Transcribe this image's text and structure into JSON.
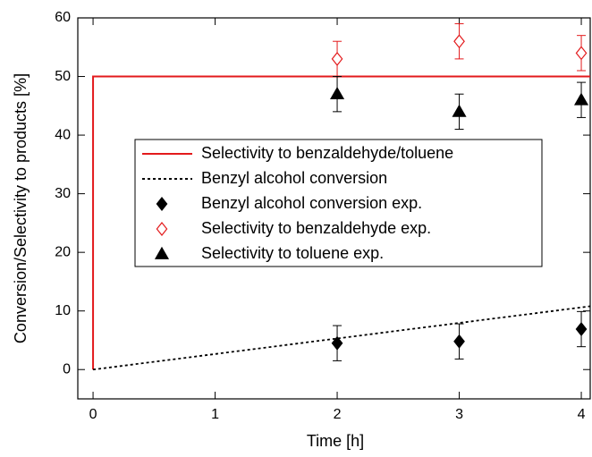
{
  "chart_data": {
    "type": "line",
    "xlabel": "Time [h]",
    "ylabel": "Conversion/Selectivity to products [%]",
    "xlim": [
      -0.125,
      4.073
    ],
    "ylim": [
      -5,
      60
    ],
    "xticks": [
      0,
      1,
      2,
      3,
      4
    ],
    "yticks": [
      0,
      10,
      20,
      30,
      40,
      50,
      60
    ],
    "legend": "upper left",
    "series": [
      {
        "name": "Selectivity to benzaldehyde/toluene",
        "color": "#e31a1c",
        "style": "solid",
        "x": [
          0,
          0,
          4.073
        ],
        "values": [
          0,
          50,
          50
        ]
      },
      {
        "name": "Benzyl alcohol conversion",
        "color": "#000000",
        "style": "dotted",
        "x": [
          0,
          4.073
        ],
        "values": [
          0,
          10.8
        ]
      },
      {
        "name": "Benzyl alcohol conversion exp.",
        "color": "#000000",
        "style": "marker",
        "marker": "diamond",
        "filled": true,
        "x": [
          2,
          3,
          4
        ],
        "values": [
          4.5,
          4.8,
          6.9
        ],
        "errors": [
          3,
          3,
          3
        ]
      },
      {
        "name": "Selectivity to benzaldehyde exp.",
        "color": "#e31a1c",
        "style": "marker",
        "marker": "diamond",
        "filled": false,
        "x": [
          2,
          3,
          4
        ],
        "values": [
          53,
          56,
          54
        ],
        "errors": [
          3,
          3,
          3
        ]
      },
      {
        "name": "Selectivity to toluene exp.",
        "color": "#000000",
        "style": "marker",
        "marker": "triangle",
        "filled": true,
        "x": [
          2,
          3,
          4
        ],
        "values": [
          47,
          44,
          46
        ],
        "errors": [
          3,
          3,
          3
        ]
      }
    ]
  }
}
